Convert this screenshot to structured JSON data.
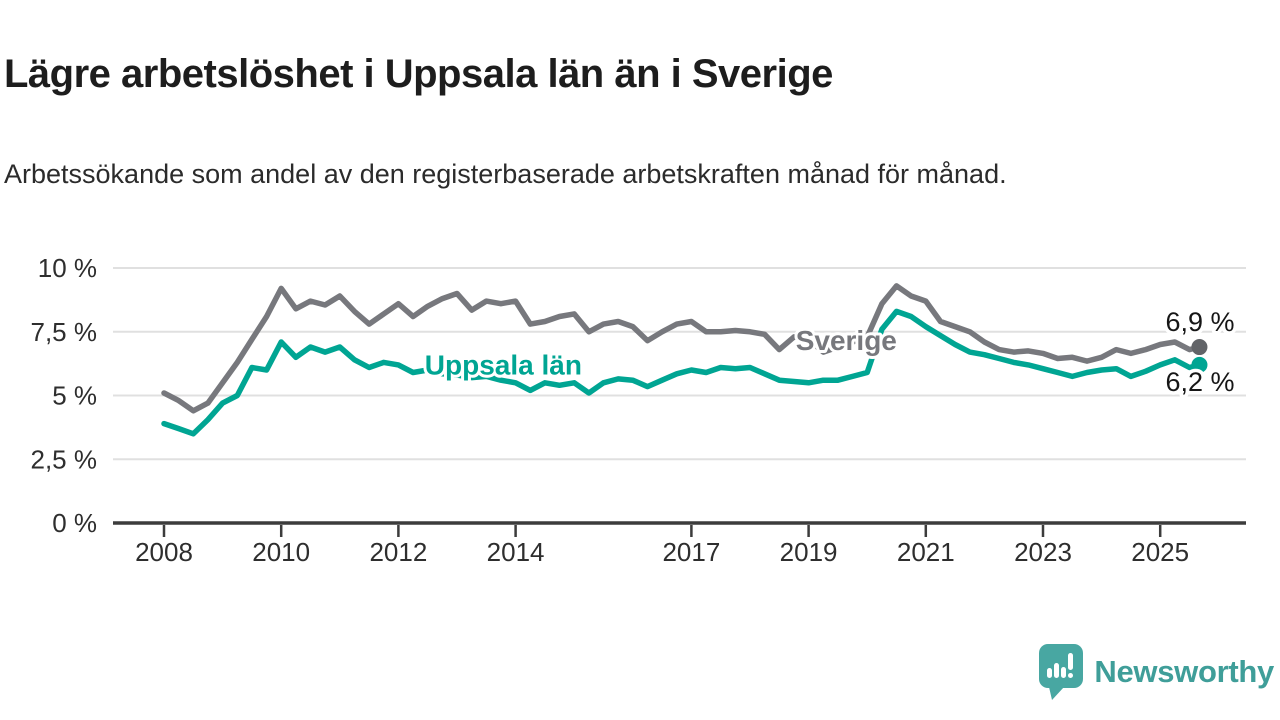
{
  "header": {
    "title": "Lägre arbetslöshet i Uppsala län än i Sverige",
    "subtitle": "Arbetssökande som andel av den registerbaserade arbetskraften månad för månad."
  },
  "branding": {
    "logo_text": "Newsworthy",
    "logo_color": "#48a7a2",
    "logo_text_color": "#3f9e99"
  },
  "chart_data": {
    "type": "line",
    "title": "Lägre arbetslöshet i Uppsala län än i Sverige",
    "subtitle": "Arbetssökande som andel av den registerbaserade arbetskraften månad för månad.",
    "xlabel": "",
    "ylabel": "",
    "ylim": [
      0,
      10.5
    ],
    "xlim": [
      2007.1,
      2026.5
    ],
    "grid": "horizontal",
    "legend_position": "inline-labels",
    "y_axis": {
      "ticks": [
        {
          "value": 10,
          "label": "10 %"
        },
        {
          "value": 7.5,
          "label": "7,5 %"
        },
        {
          "value": 5,
          "label": "5 %"
        },
        {
          "value": 2.5,
          "label": "2,5 %"
        },
        {
          "value": 0,
          "label": "0 %"
        }
      ]
    },
    "x_axis": {
      "ticks": [
        {
          "year": 2008,
          "label": "2008"
        },
        {
          "year": 2010,
          "label": "2010"
        },
        {
          "year": 2012,
          "label": "2012"
        },
        {
          "year": 2014,
          "label": "2014"
        },
        {
          "year": 2017,
          "label": "2017"
        },
        {
          "year": 2019,
          "label": "2019"
        },
        {
          "year": 2021,
          "label": "2021"
        },
        {
          "year": 2023,
          "label": "2023"
        },
        {
          "year": 2025,
          "label": "2025"
        }
      ]
    },
    "x": [
      2008,
      2008.25,
      2008.5,
      2008.75,
      2009,
      2009.25,
      2009.5,
      2009.75,
      2010,
      2010.25,
      2010.5,
      2010.75,
      2011,
      2011.25,
      2011.5,
      2011.75,
      2012,
      2012.25,
      2012.5,
      2012.75,
      2013,
      2013.25,
      2013.5,
      2013.75,
      2014,
      2014.25,
      2014.5,
      2014.75,
      2015,
      2015.25,
      2015.5,
      2015.75,
      2016,
      2016.25,
      2016.5,
      2016.75,
      2017,
      2017.25,
      2017.5,
      2017.75,
      2018,
      2018.25,
      2018.5,
      2018.75,
      2019,
      2019.25,
      2019.5,
      2019.75,
      2020,
      2020.25,
      2020.5,
      2020.75,
      2021,
      2021.25,
      2021.5,
      2021.75,
      2022,
      2022.25,
      2022.5,
      2022.75,
      2023,
      2023.25,
      2023.5,
      2023.75,
      2024,
      2024.25,
      2024.5,
      2024.75,
      2025,
      2025.25,
      2025.5,
      2025.67
    ],
    "series": [
      {
        "name": "Sverige",
        "color": "#77787d",
        "dot_color": "#626468",
        "end_label": "6,9 %",
        "values": [
          5.1,
          4.8,
          4.4,
          4.7,
          5.5,
          6.3,
          7.2,
          8.1,
          9.2,
          8.4,
          8.7,
          8.55,
          8.9,
          8.3,
          7.8,
          8.2,
          8.6,
          8.1,
          8.5,
          8.8,
          9.0,
          8.35,
          8.7,
          8.6,
          8.7,
          7.8,
          7.9,
          8.1,
          8.2,
          7.5,
          7.8,
          7.9,
          7.7,
          7.15,
          7.5,
          7.8,
          7.9,
          7.5,
          7.5,
          7.55,
          7.5,
          7.4,
          6.8,
          7.3,
          7.2,
          6.7,
          6.9,
          7.1,
          7.3,
          8.6,
          9.3,
          8.9,
          8.7,
          7.9,
          7.7,
          7.5,
          7.1,
          6.8,
          6.7,
          6.75,
          6.65,
          6.45,
          6.5,
          6.35,
          6.5,
          6.8,
          6.65,
          6.8,
          7.0,
          7.1,
          6.8,
          6.9
        ]
      },
      {
        "name": "Uppsala län",
        "color": "#00a593",
        "dot_color": "#00a593",
        "end_label": "6,2 %",
        "values": [
          3.9,
          3.7,
          3.5,
          4.05,
          4.7,
          5.0,
          6.1,
          6.0,
          7.1,
          6.5,
          6.9,
          6.7,
          6.9,
          6.4,
          6.1,
          6.3,
          6.2,
          5.9,
          6.0,
          5.85,
          5.8,
          5.7,
          5.75,
          5.6,
          5.5,
          5.2,
          5.5,
          5.4,
          5.5,
          5.1,
          5.5,
          5.65,
          5.6,
          5.35,
          5.6,
          5.85,
          6.0,
          5.9,
          6.1,
          6.05,
          6.1,
          5.85,
          5.6,
          5.55,
          5.5,
          5.6,
          5.6,
          5.75,
          5.9,
          7.6,
          8.3,
          8.1,
          7.7,
          7.35,
          7.0,
          6.7,
          6.6,
          6.45,
          6.3,
          6.2,
          6.05,
          5.9,
          5.75,
          5.9,
          6.0,
          6.05,
          5.75,
          5.95,
          6.2,
          6.4,
          6.1,
          6.2
        ]
      }
    ],
    "annotations": [
      {
        "text": "Sverige",
        "year": 2018.78,
        "value": 6.78,
        "color": "#77787d"
      },
      {
        "text": "Uppsala län",
        "year": 2012.45,
        "value": 5.82,
        "color": "#00a593"
      }
    ]
  }
}
